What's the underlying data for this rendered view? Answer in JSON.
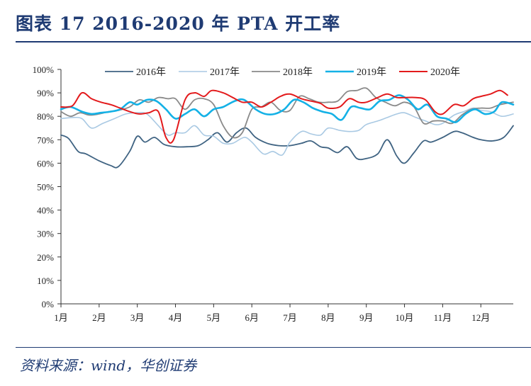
{
  "header": {
    "title": "图表 17    2016-2020 年 PTA 开工率"
  },
  "footer": {
    "source": "资料来源：wind，华创证券"
  },
  "chart_data": {
    "type": "line",
    "title": "2016-2020 年 PTA 开工率",
    "ylim": [
      0,
      100
    ],
    "yticks": [
      "0%",
      "10%",
      "20%",
      "30%",
      "40%",
      "50%",
      "60%",
      "70%",
      "80%",
      "90%",
      "100%"
    ],
    "xlim": [
      1,
      12.85
    ],
    "xticks": [
      "1月",
      "2月",
      "3月",
      "4月",
      "5月",
      "6月",
      "7月",
      "8月",
      "9月",
      "10月",
      "11月",
      "12月"
    ],
    "grid": false,
    "legend_position": "top",
    "series": [
      {
        "name": "2016年",
        "color": "#3f6382",
        "x": [
          1.0,
          1.2,
          1.45,
          1.65,
          2.0,
          2.3,
          2.5,
          2.8,
          3.0,
          3.2,
          3.45,
          3.7,
          4.0,
          4.3,
          4.6,
          4.85,
          5.1,
          5.35,
          5.6,
          5.85,
          6.1,
          6.4,
          6.7,
          7.0,
          7.3,
          7.55,
          7.8,
          8.0,
          8.25,
          8.5,
          8.75,
          9.0,
          9.3,
          9.55,
          9.8,
          10.0,
          10.25,
          10.5,
          10.7,
          11.0,
          11.3,
          11.5,
          11.8,
          12.0,
          12.3,
          12.6,
          12.85
        ],
        "y": [
          72,
          70.5,
          65,
          64,
          61,
          59,
          58.5,
          65,
          71.5,
          69,
          71,
          68,
          67,
          67,
          67.5,
          70,
          73,
          69,
          73,
          75,
          71,
          68.5,
          67.5,
          67.5,
          68.5,
          69.5,
          67,
          66.5,
          64.5,
          67,
          62,
          62,
          64,
          70,
          63,
          60,
          64.5,
          69.5,
          69,
          71,
          73.5,
          73,
          71,
          70,
          69.5,
          71,
          76
        ]
      },
      {
        "name": "2017年",
        "color": "#a9c9e3",
        "x": [
          1.0,
          1.3,
          1.55,
          1.8,
          2.1,
          2.4,
          2.7,
          3.0,
          3.25,
          3.55,
          3.8,
          4.0,
          4.25,
          4.5,
          4.75,
          5.0,
          5.25,
          5.5,
          5.8,
          6.0,
          6.3,
          6.55,
          6.8,
          7.0,
          7.3,
          7.55,
          7.8,
          8.0,
          8.3,
          8.55,
          8.8,
          9.0,
          9.3,
          9.55,
          9.8,
          10.0,
          10.3,
          10.55,
          10.8,
          11.0,
          11.3,
          11.55,
          11.8,
          12.0,
          12.25,
          12.55,
          12.85
        ],
        "y": [
          79,
          79.5,
          79,
          75,
          77,
          79,
          81,
          81.5,
          81,
          76,
          72,
          73,
          73,
          76,
          72,
          71.5,
          68.5,
          68.5,
          71,
          69,
          64,
          65,
          63.5,
          69,
          73.5,
          72.5,
          72,
          75,
          74,
          73.5,
          74,
          76.5,
          78,
          79.5,
          81,
          81.5,
          79.5,
          78,
          76.5,
          77,
          80.5,
          82,
          83.5,
          82.5,
          82,
          80,
          81
        ]
      },
      {
        "name": "2018年",
        "color": "#8a8a8a",
        "x": [
          1.0,
          1.25,
          1.5,
          1.75,
          2.0,
          2.25,
          2.5,
          2.8,
          3.05,
          3.3,
          3.55,
          3.8,
          4.0,
          4.25,
          4.5,
          4.75,
          5.0,
          5.25,
          5.5,
          5.75,
          6.0,
          6.25,
          6.5,
          6.75,
          7.0,
          7.25,
          7.5,
          7.75,
          8.0,
          8.25,
          8.5,
          8.75,
          9.0,
          9.25,
          9.5,
          9.75,
          10.0,
          10.25,
          10.5,
          10.75,
          11.0,
          11.25,
          11.5,
          11.75,
          12.0,
          12.25,
          12.5,
          12.85
        ],
        "y": [
          82,
          80,
          81.5,
          80.5,
          81,
          82,
          82.5,
          84,
          87,
          86,
          88,
          87.5,
          87.5,
          83,
          87,
          87.5,
          85,
          76,
          71,
          73,
          83,
          84,
          86,
          82.5,
          82.5,
          88.5,
          87.5,
          86,
          86,
          86.5,
          90.5,
          91,
          92,
          88,
          86,
          84.5,
          86,
          84,
          77,
          78,
          78,
          77,
          80.5,
          83,
          83.5,
          83.5,
          85,
          86
        ]
      },
      {
        "name": "2019年",
        "color": "#14b1e6",
        "x": [
          1.0,
          1.25,
          1.55,
          1.8,
          2.05,
          2.3,
          2.55,
          2.8,
          3.0,
          3.25,
          3.5,
          3.75,
          4.0,
          4.25,
          4.5,
          4.75,
          5.0,
          5.25,
          5.55,
          5.8,
          6.1,
          6.35,
          6.6,
          6.85,
          7.1,
          7.35,
          7.6,
          7.85,
          8.1,
          8.35,
          8.6,
          8.85,
          9.1,
          9.35,
          9.6,
          9.85,
          10.1,
          10.35,
          10.6,
          10.85,
          11.1,
          11.35,
          11.6,
          11.85,
          12.1,
          12.35,
          12.55,
          12.85
        ],
        "y": [
          83,
          84,
          82,
          81,
          81.5,
          82,
          83,
          86,
          85,
          87,
          86.5,
          83,
          79,
          81,
          83,
          80,
          83,
          84,
          86.5,
          87,
          83,
          81,
          81,
          83,
          87,
          86,
          83.5,
          82,
          81,
          78.5,
          84,
          83.5,
          83,
          86.5,
          87,
          89,
          87,
          83,
          85,
          80,
          79,
          77.5,
          81,
          83,
          81,
          82,
          86,
          85
        ]
      },
      {
        "name": "2020年",
        "color": "#e31a1c",
        "x": [
          1.0,
          1.3,
          1.55,
          1.8,
          2.05,
          2.3,
          2.55,
          2.8,
          3.05,
          3.3,
          3.55,
          3.75,
          3.95,
          4.25,
          4.5,
          4.75,
          4.95,
          5.25,
          5.5,
          5.75,
          6.0,
          6.25,
          6.5,
          6.75,
          7.0,
          7.3,
          7.55,
          7.8,
          8.0,
          8.3,
          8.55,
          8.8,
          9.0,
          9.3,
          9.55,
          9.8,
          10.0,
          10.3,
          10.55,
          10.8,
          11.0,
          11.3,
          11.55,
          11.8,
          12.0,
          12.25,
          12.5,
          12.7
        ],
        "y": [
          84,
          84.5,
          90,
          87.5,
          86,
          85,
          83.5,
          82,
          81,
          81.5,
          82,
          71,
          70,
          87,
          90,
          88.5,
          91,
          90,
          88,
          86,
          86,
          84,
          86,
          88.5,
          89.5,
          87.5,
          86.5,
          85.5,
          83.5,
          84,
          87.5,
          86,
          86,
          88,
          89.5,
          88,
          88,
          88,
          87,
          82,
          81,
          85,
          84.5,
          87.5,
          88.5,
          89.5,
          91,
          89
        ]
      }
    ]
  }
}
